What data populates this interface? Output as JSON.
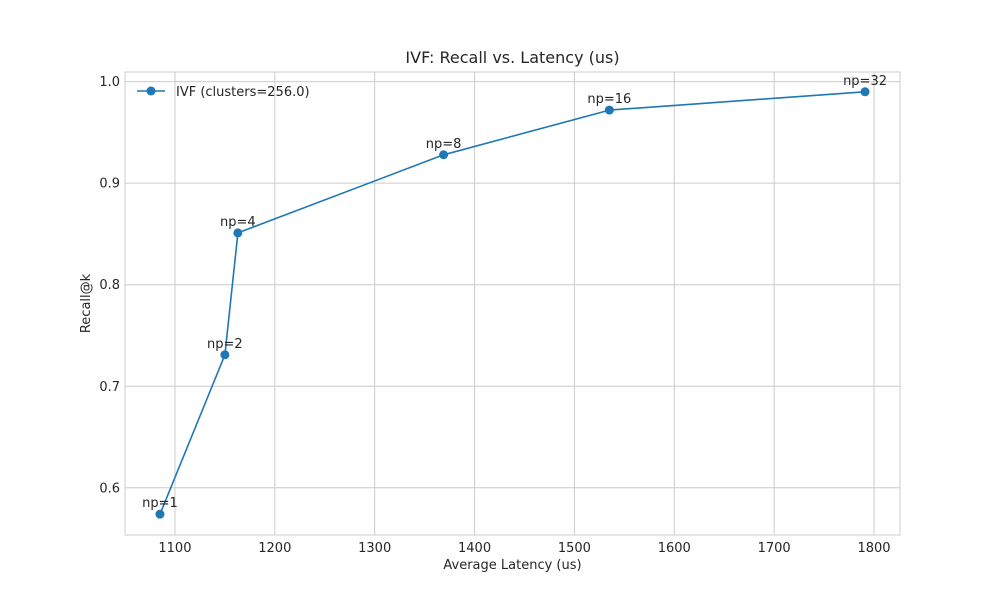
{
  "chart_data": {
    "type": "line",
    "title": "IVF: Recall vs. Latency (us)",
    "xlabel": "Average Latency (us)",
    "ylabel": "Recall@k",
    "xlim": [
      1050,
      1826
    ],
    "ylim": [
      0.5535,
      1.0095
    ],
    "xticks": [
      1100,
      1200,
      1300,
      1400,
      1500,
      1600,
      1700,
      1800
    ],
    "yticks": [
      0.6,
      0.7,
      0.8,
      0.9,
      1.0
    ],
    "xtick_labels": [
      "1100",
      "1200",
      "1300",
      "1400",
      "1500",
      "1600",
      "1700",
      "1800"
    ],
    "ytick_labels": [
      "0.6",
      "0.7",
      "0.8",
      "0.9",
      "1.0"
    ],
    "grid": true,
    "legend_position": "upper-left",
    "series": [
      {
        "name": "IVF (clusters=256.0)",
        "color": "#1f77b4",
        "marker": "circle",
        "points": [
          {
            "x": 1085,
            "y": 0.574,
            "label": "np=1"
          },
          {
            "x": 1150,
            "y": 0.731,
            "label": "np=2"
          },
          {
            "x": 1163,
            "y": 0.851,
            "label": "np=4"
          },
          {
            "x": 1369,
            "y": 0.928,
            "label": "np=8"
          },
          {
            "x": 1535,
            "y": 0.972,
            "label": "np=16"
          },
          {
            "x": 1791,
            "y": 0.99,
            "label": "np=32"
          }
        ]
      }
    ]
  }
}
